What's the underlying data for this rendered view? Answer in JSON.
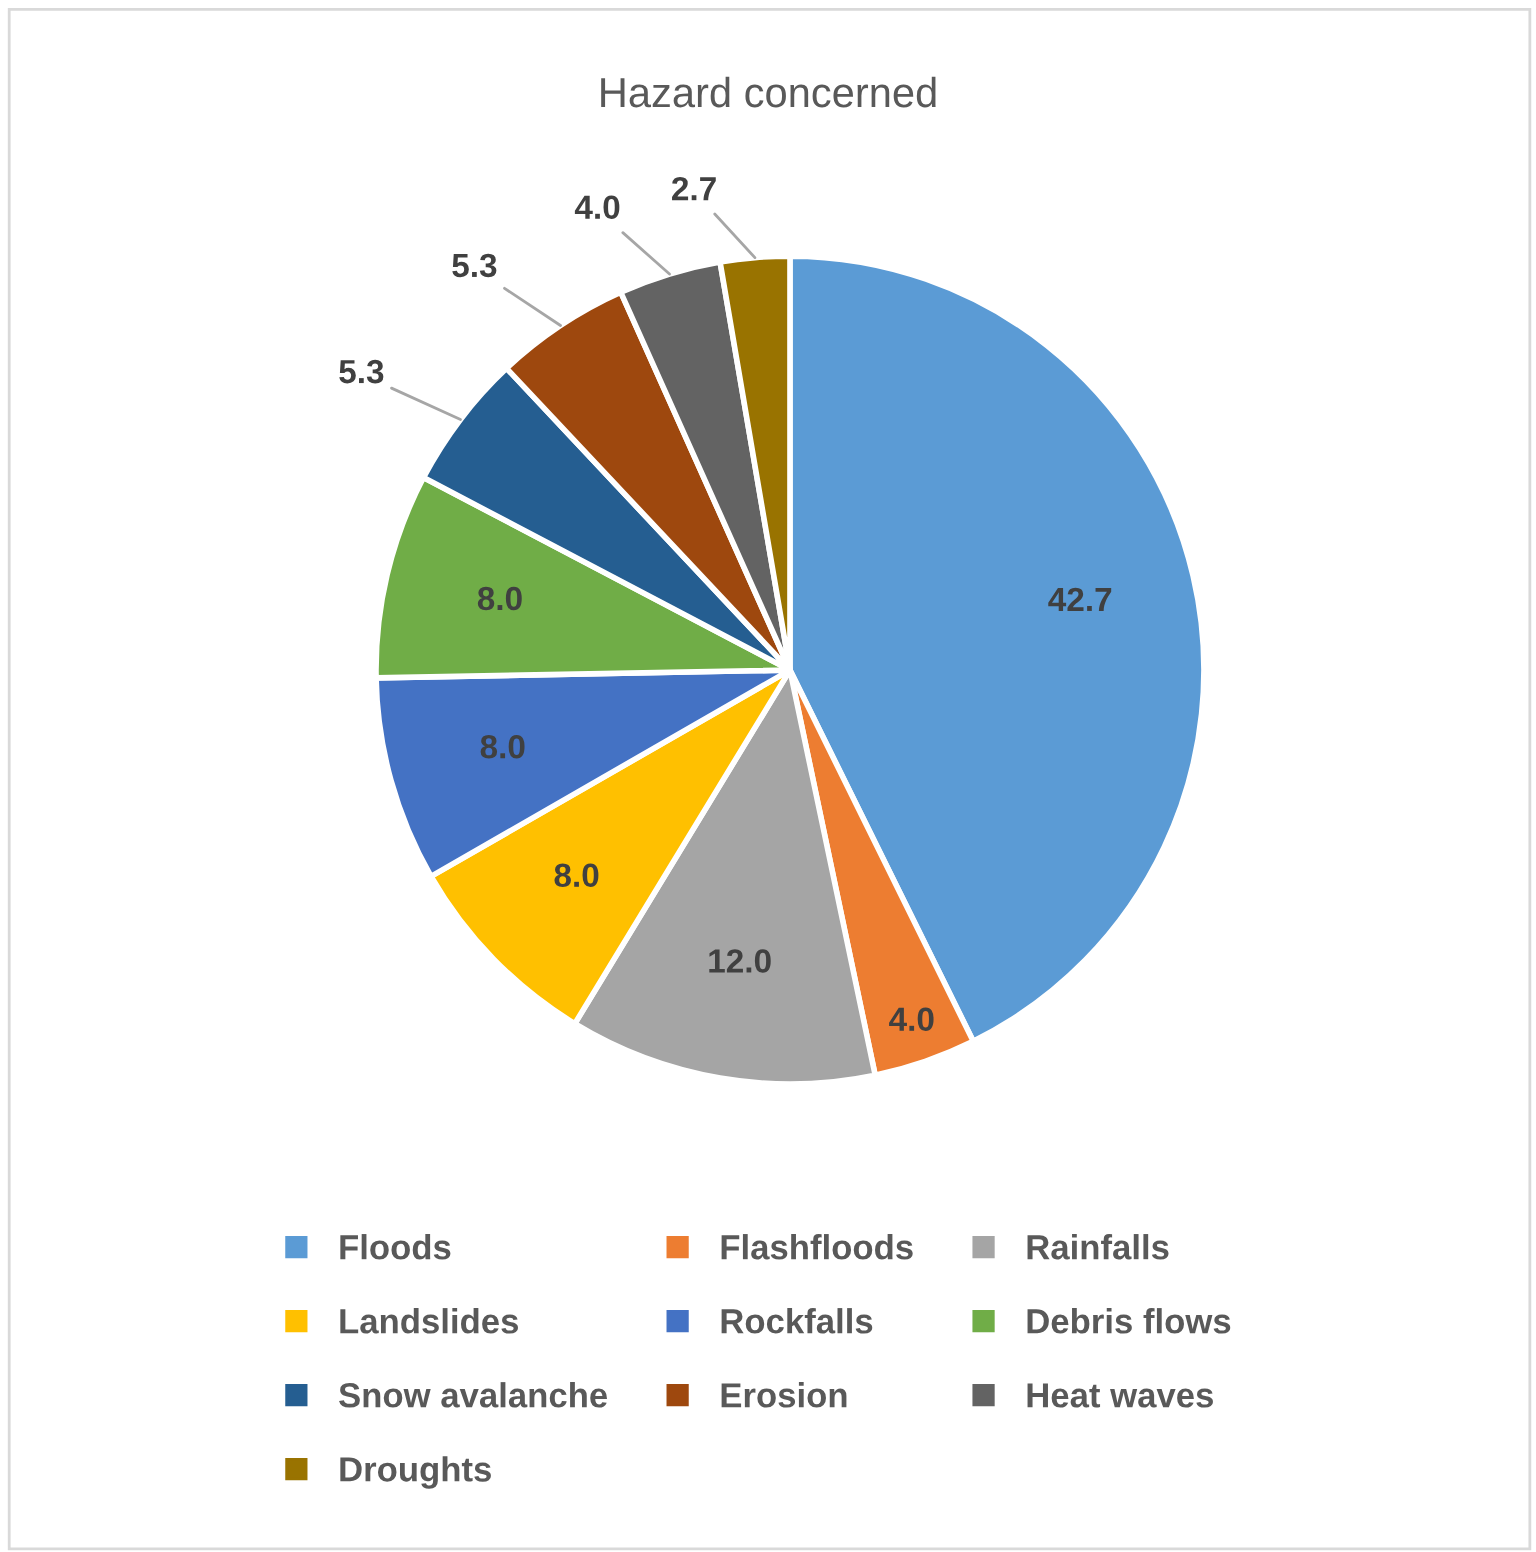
{
  "chart_data": {
    "type": "pie",
    "title": "Hazard concerned",
    "categories": [
      "Floods",
      "Flashfloods",
      "Rainfalls",
      "Landslides",
      "Rockfalls",
      "Debris flows",
      "Snow avalanche",
      "Erosion",
      "Heat waves",
      "Droughts"
    ],
    "values": [
      42.7,
      4.0,
      12.0,
      8.0,
      8.0,
      8.0,
      5.3,
      5.3,
      4.0,
      2.7
    ],
    "colors": [
      "#5b9bd5",
      "#ed7d31",
      "#a5a5a5",
      "#ffc000",
      "#4472c4",
      "#70ad47",
      "#255e91",
      "#9e480e",
      "#636363",
      "#997300"
    ],
    "value_labels": [
      "42.7",
      "4.0",
      "12.0",
      "8.0",
      "8.0",
      "8.0",
      "5.3",
      "5.3",
      "4.0",
      "2.7"
    ],
    "legend": "bottom"
  }
}
